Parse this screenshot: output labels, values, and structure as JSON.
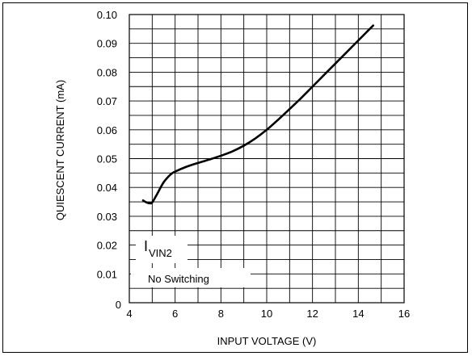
{
  "chart_data": {
    "type": "line",
    "xlabel": "INPUT VOLTAGE (V)",
    "ylabel": "QUIESCENT CURRENT (mA)",
    "xlim": [
      4,
      16
    ],
    "ylim": [
      0,
      0.1
    ],
    "x_ticks": [
      "4",
      "6",
      "8",
      "10",
      "12",
      "14",
      "16"
    ],
    "y_ticks": [
      "0",
      "0.01",
      "0.02",
      "0.03",
      "0.04",
      "0.05",
      "0.06",
      "0.07",
      "0.08",
      "0.09",
      "0.10"
    ],
    "grid": true,
    "x_grid_step": 1,
    "y_grid_step": 0.005,
    "series": [
      {
        "x": [
          4.6,
          4.75,
          4.9,
          5.0,
          5.2,
          5.5,
          5.8,
          6.0,
          6.5,
          7.0,
          7.5,
          8.0,
          8.5,
          9.0,
          9.5,
          10.0,
          10.5,
          11.0,
          11.5,
          12.0,
          12.5,
          13.0,
          13.5,
          14.0,
          14.5,
          14.65
        ],
        "values": [
          0.0355,
          0.0348,
          0.0345,
          0.0348,
          0.0375,
          0.0418,
          0.0445,
          0.0455,
          0.0472,
          0.0485,
          0.0497,
          0.051,
          0.0525,
          0.0545,
          0.057,
          0.06,
          0.0635,
          0.0672,
          0.071,
          0.075,
          0.079,
          0.083,
          0.087,
          0.091,
          0.095,
          0.0962
        ]
      }
    ],
    "annotations": {
      "symbol": "I",
      "subscript": "VIN2",
      "note": "No Switching"
    }
  }
}
